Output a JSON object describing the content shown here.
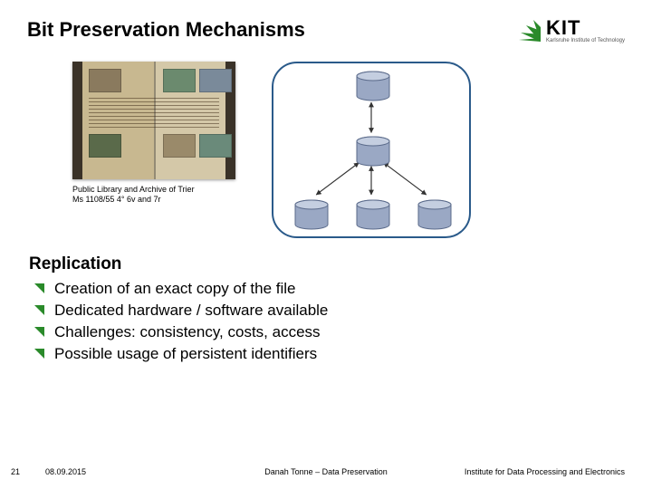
{
  "title": "Bit Preservation Mechanisms",
  "logo": {
    "main": "KIT",
    "sub": "Karlsruhe Institute of Technology",
    "accent_color": "#2a8a2a"
  },
  "manuscript": {
    "caption_line1": "Public Library and Archive of Trier",
    "caption_line2": "Ms 1108/55 4° 6v and 7r"
  },
  "diagram": {
    "border_color": "#2a5a8a",
    "db_fill": "#9aa8c4",
    "db_stroke": "#5a6a8a",
    "arrow_color": "#333333",
    "nodes": [
      "top",
      "mid",
      "bl",
      "bc",
      "br"
    ]
  },
  "section": {
    "heading": "Replication",
    "bullets": [
      "Creation of an exact copy of the file",
      "Dedicated hardware / software available",
      "Challenges: consistency, costs, access",
      "Possible usage of persistent identifiers"
    ]
  },
  "footer": {
    "page": "21",
    "date": "08.09.2015",
    "center": "Danah Tonne – Data Preservation",
    "right": "Institute for Data Processing and Electronics"
  }
}
